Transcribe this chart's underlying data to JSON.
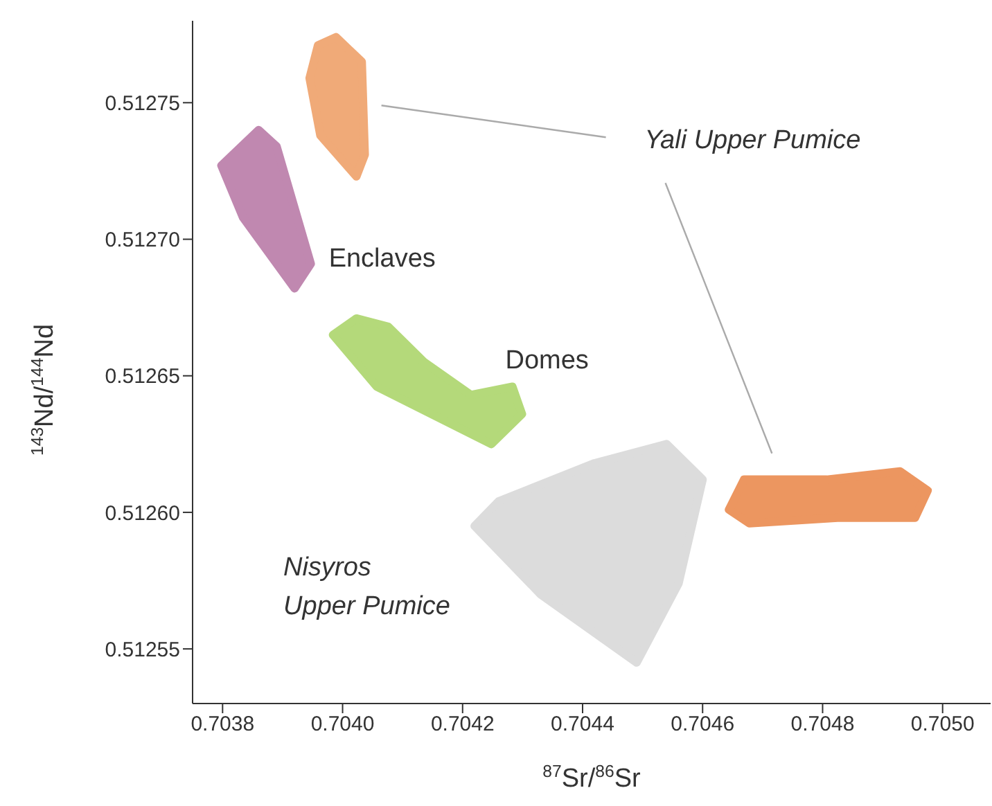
{
  "chart_data": {
    "type": "area",
    "xlabel": "$^{87}$Sr/$^{86}$Sr",
    "ylabel": "$^{143}$Nd/$^{144}$Nd",
    "xlim": [
      0.70375,
      0.70508
    ],
    "ylim": [
      0.51253,
      0.51278
    ],
    "xticks": [
      0.7038,
      {
        "value": 0.704,
        "label": "0.7040"
      },
      0.7042,
      0.7044,
      0.7046,
      0.7048,
      {
        "value": 0.705,
        "label": "0.7050"
      }
    ],
    "yticks": [
      0.51255,
      {
        "value": 0.5126,
        "label": "0.51260"
      },
      0.51265,
      {
        "value": 0.5127,
        "label": "0.51270"
      },
      0.51275
    ],
    "legend": false,
    "annotations": [
      "Yali Upper Pumice"
    ],
    "marker": "none",
    "series": [
      {
        "color": "#f0aa78",
        "x": [
          0.703989,
          0.704032,
          0.704037,
          0.704023,
          0.703963,
          0.703945,
          0.703959
        ],
        "values": [
          0.512774,
          0.512765,
          0.512731,
          0.512723,
          0.512738,
          0.512759,
          0.512771
        ]
      },
      {
        "color": "#ec9660",
        "x": [
          0.704644,
          0.704669,
          0.704807,
          0.704929,
          0.704975,
          0.704954,
          0.704825,
          0.704678
        ],
        "values": [
          0.512601,
          0.512612,
          0.512612,
          0.512615,
          0.512608,
          0.512598,
          0.512598,
          0.512596
        ]
      },
      {
        "name": "Enclaves",
        "color": "#c088b0",
        "x": [
          0.70386,
          0.703798,
          0.703834,
          0.70392,
          0.703947,
          0.70389
        ],
        "values": [
          0.51274,
          0.512727,
          0.512708,
          0.512682,
          0.512691,
          0.512734
        ]
      },
      {
        "name": "Domes",
        "color": "#b4d97a",
        "x": [
          0.704023,
          0.703984,
          0.704057,
          0.704248,
          0.704299,
          0.704283,
          0.704214,
          0.704136,
          0.704076
        ],
        "values": [
          0.512671,
          0.512665,
          0.512646,
          0.512625,
          0.512636,
          0.512646,
          0.512643,
          0.512655,
          0.512668
        ]
      },
      {
        "name": "Nisyros Upper Pumice",
        "color": "#dcdcdc",
        "x": [
          0.70454,
          0.7046,
          0.70456,
          0.70449,
          0.70433,
          0.70422,
          0.70426,
          0.70442
        ],
        "values": [
          0.512625,
          0.512612,
          0.512574,
          0.512545,
          0.51257,
          0.512595,
          0.512604,
          0.512618
        ]
      }
    ]
  }
}
